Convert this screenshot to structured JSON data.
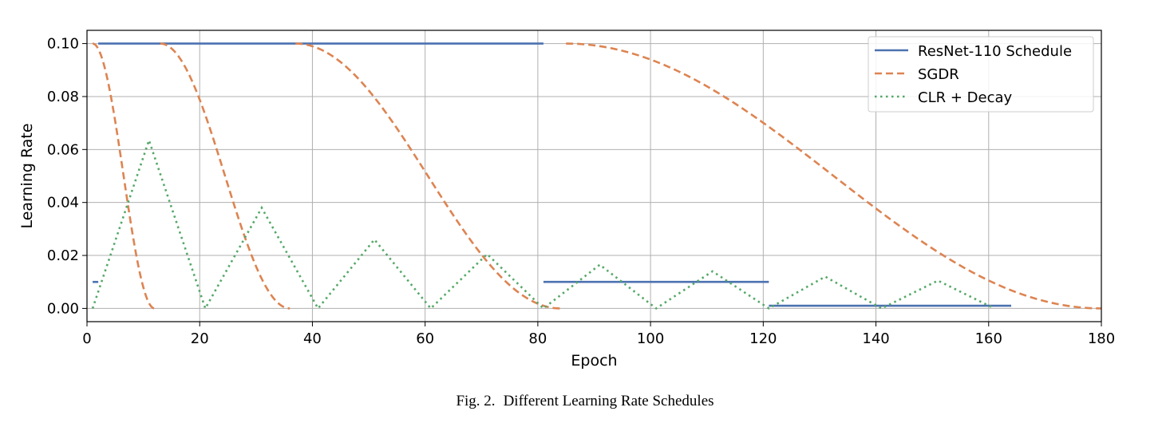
{
  "caption": {
    "label": "Fig. 2.",
    "text": "Different Learning Rate Schedules"
  },
  "chart_data": {
    "type": "line",
    "xlabel": "Epoch",
    "ylabel": "Learning Rate",
    "xlim": [
      0,
      180
    ],
    "ylim": [
      -0.005,
      0.105
    ],
    "x_ticks": [
      0,
      20,
      40,
      60,
      80,
      100,
      120,
      140,
      160,
      180
    ],
    "y_ticks": [
      0.0,
      0.02,
      0.04,
      0.06,
      0.08,
      0.1
    ],
    "y_tick_labels": [
      "0.00",
      "0.02",
      "0.04",
      "0.06",
      "0.08",
      "0.10"
    ],
    "grid": true,
    "legend_position": "top-right",
    "series": [
      {
        "name": "ResNet-110 Schedule",
        "color": "#4c72b0",
        "style": "solid",
        "segments": [
          {
            "x": [
              1,
              2
            ],
            "y": [
              0.01,
              0.01
            ]
          },
          {
            "x": [
              2,
              81
            ],
            "y": [
              0.1,
              0.1
            ]
          },
          {
            "x": [
              81,
              121
            ],
            "y": [
              0.01,
              0.01
            ]
          },
          {
            "x": [
              121,
              164
            ],
            "y": [
              0.001,
              0.001
            ]
          }
        ]
      },
      {
        "name": "SGDR",
        "color": "#dd8452",
        "style": "dashed",
        "cycles": [
          {
            "start": 1,
            "end": 12
          },
          {
            "start": 13,
            "end": 36
          },
          {
            "start": 37,
            "end": 84
          },
          {
            "start": 85,
            "end": 180
          }
        ],
        "max": 0.1,
        "min": 0.0
      },
      {
        "name": "CLR + Decay",
        "color": "#55a868",
        "style": "dotted",
        "points": [
          [
            1,
            0.0
          ],
          [
            11,
            0.0635
          ],
          [
            21,
            0.0
          ],
          [
            31,
            0.038
          ],
          [
            41,
            0.0
          ],
          [
            51,
            0.026
          ],
          [
            61,
            0.0
          ],
          [
            71,
            0.0205
          ],
          [
            81,
            0.0
          ],
          [
            91,
            0.0165
          ],
          [
            101,
            0.0
          ],
          [
            111,
            0.014
          ],
          [
            121,
            0.0
          ],
          [
            131,
            0.012
          ],
          [
            141,
            0.0
          ],
          [
            151,
            0.0105
          ],
          [
            161,
            0.0
          ]
        ]
      }
    ]
  }
}
